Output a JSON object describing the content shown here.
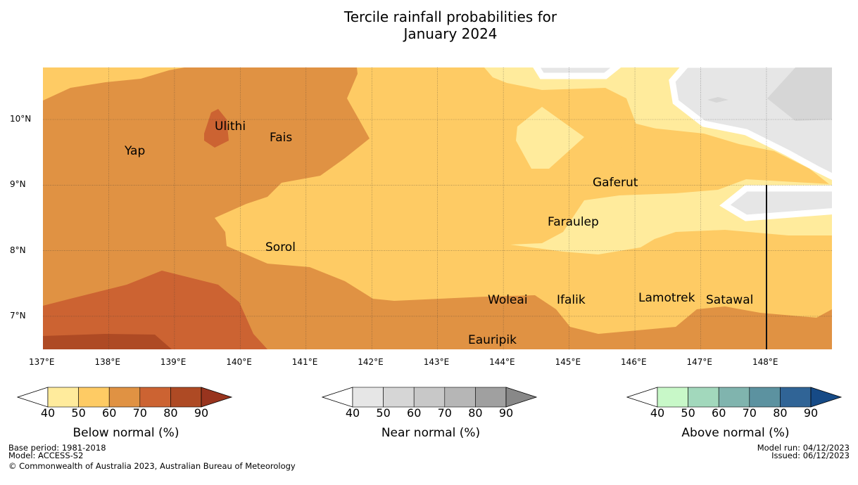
{
  "title": {
    "line1": "Tercile rainfall probabilities for",
    "line2": "January 2024"
  },
  "axes": {
    "lon_ticks": [
      "137°E",
      "138°E",
      "139°E",
      "140°E",
      "141°E",
      "142°E",
      "143°E",
      "144°E",
      "145°E",
      "146°E",
      "147°E",
      "148°E"
    ],
    "lat_ticks": [
      "10°N",
      "9°N",
      "8°N",
      "7°N"
    ]
  },
  "places": [
    {
      "name": "Ulithi"
    },
    {
      "name": "Fais"
    },
    {
      "name": "Yap"
    },
    {
      "name": "Gaferut"
    },
    {
      "name": "Faraulep"
    },
    {
      "name": "Sorol"
    },
    {
      "name": "Woleai"
    },
    {
      "name": "Ifalik"
    },
    {
      "name": "Lamotrek"
    },
    {
      "name": "Satawal"
    },
    {
      "name": "Eauripik"
    }
  ],
  "legends": [
    {
      "name": "Below normal (%)",
      "ticks": [
        "40",
        "50",
        "60",
        "70",
        "80",
        "90"
      ],
      "colors": [
        "#ffeb9c",
        "#fecb64",
        "#e09243",
        "#cc6332",
        "#ae4a24",
        "#98341e"
      ]
    },
    {
      "name": "Near normal (%)",
      "ticks": [
        "40",
        "50",
        "60",
        "70",
        "80",
        "90"
      ],
      "colors": [
        "#e6e6e6",
        "#d6d6d6",
        "#c8c8c8",
        "#b6b6b6",
        "#a0a0a0",
        "#888888"
      ]
    },
    {
      "name": "Above normal (%)",
      "ticks": [
        "40",
        "50",
        "60",
        "70",
        "80",
        "90"
      ],
      "colors": [
        "#c8f8c8",
        "#a2d8bc",
        "#80b4ae",
        "#5c92a0",
        "#306496",
        "#164a86"
      ]
    }
  ],
  "footer": {
    "base_period": "Base period: 1981-2018",
    "model": "Model: ACCESS-S2",
    "copyright": "© Commonwealth of Australia 2023, Australian Bureau of Meteorology",
    "model_run": "Model run: 04/12/2023",
    "issued": "Issued: 06/12/2023"
  }
}
